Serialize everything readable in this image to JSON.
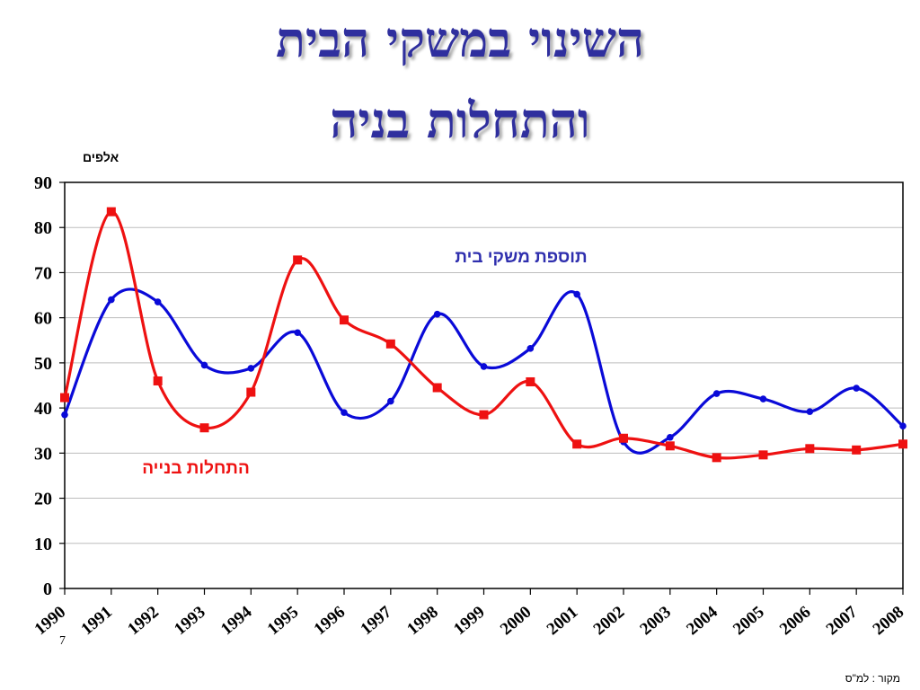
{
  "title_line1": "השינוי במשקי הבית",
  "title_line2": "והתחלות בניה",
  "y_unit": "אלפים",
  "source": "מקור : למ\"ס",
  "slide_number": "7",
  "chart_data": {
    "type": "line",
    "title": "השינוי במשקי הבית והתחלות בניה",
    "ylabel": "אלפים",
    "ylim": [
      0,
      90
    ],
    "yticks": [
      0,
      10,
      20,
      30,
      40,
      50,
      60,
      70,
      80,
      90
    ],
    "grid": true,
    "x": [
      "1990",
      "1991",
      "1992",
      "1993",
      "1994",
      "1995",
      "1996",
      "1997",
      "1998",
      "1999",
      "2000",
      "2001",
      "2002",
      "2003",
      "2004",
      "2005",
      "2006",
      "2007",
      "2008"
    ],
    "series": [
      {
        "name": "תוספת משקי בית",
        "color": "#0a0ad8",
        "marker": "circle",
        "values": [
          38.5,
          64,
          63.5,
          49.5,
          48.8,
          56.7,
          39,
          41.5,
          60.8,
          49.2,
          53.2,
          65.2,
          32.5,
          33.5,
          43.2,
          42,
          39.2,
          44.4,
          36
        ]
      },
      {
        "name": "התחלות בנייה",
        "color": "#ee1111",
        "marker": "square",
        "values": [
          42.3,
          83.5,
          46,
          35.6,
          43.5,
          72.8,
          59.5,
          54.2,
          44.5,
          38.5,
          45.8,
          32,
          33.3,
          31.6,
          29,
          29.6,
          31,
          30.7,
          32
        ]
      }
    ]
  }
}
